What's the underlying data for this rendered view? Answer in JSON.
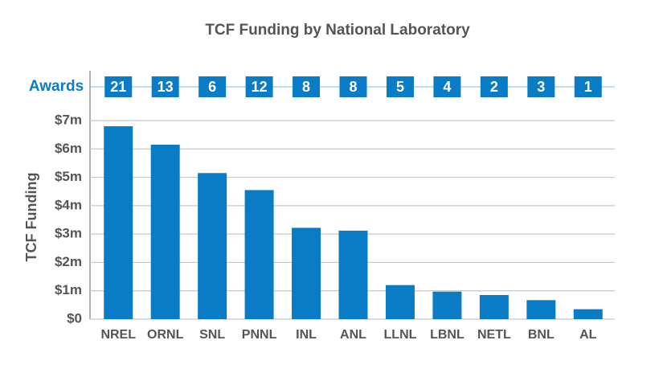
{
  "chart_data": {
    "type": "bar",
    "title": "TCF Funding by National Laboratory",
    "y_label": "TCF Funding",
    "categories": [
      "NREL",
      "ORNL",
      "SNL",
      "PNNL",
      "INL",
      "ANL",
      "LLNL",
      "LBNL",
      "NETL",
      "BNL",
      "AL"
    ],
    "values": [
      6.8,
      6.15,
      5.15,
      4.55,
      3.22,
      3.12,
      1.2,
      0.97,
      0.85,
      0.67,
      0.35
    ],
    "color": "#0a7cc6",
    "ylim": [
      0,
      7
    ],
    "yticks": [
      {
        "value": 0,
        "label": "$0"
      },
      {
        "value": 1,
        "label": "$1m"
      },
      {
        "value": 2,
        "label": "$2m"
      },
      {
        "value": 3,
        "label": "$3m"
      },
      {
        "value": 4,
        "label": "$4m"
      },
      {
        "value": 5,
        "label": "$5m"
      },
      {
        "value": 6,
        "label": "$6m"
      },
      {
        "value": 7,
        "label": "$7m"
      }
    ],
    "grid": true,
    "awards": {
      "label": "Awards",
      "values": [
        21,
        13,
        6,
        12,
        8,
        8,
        5,
        4,
        2,
        3,
        1
      ]
    }
  }
}
